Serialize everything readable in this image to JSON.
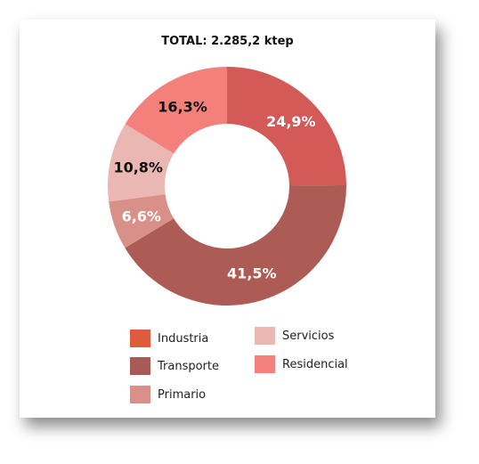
{
  "chart_data": {
    "type": "pie",
    "variant": "donut",
    "title": "TOTAL: 2.285,2 ktep",
    "slices": [
      {
        "label": "Industria",
        "value": 24.9,
        "display": "24,9%",
        "color": "#d45a58",
        "legend_color": "#e05a3f",
        "label_color": "#ffffff"
      },
      {
        "label": "Transporte",
        "value": 41.5,
        "display": "41,5%",
        "color": "#ad5b55",
        "legend_color": "#a85a56",
        "label_color": "#ffffff"
      },
      {
        "label": "Primario",
        "value": 6.6,
        "display": "6,6%",
        "color": "#d99089",
        "legend_color": "#d99089",
        "label_color": "#ffffff"
      },
      {
        "label": "Servicios",
        "value": 10.8,
        "display": "10,8%",
        "color": "#eab7b2",
        "legend_color": "#eab7b2",
        "label_color": "#111111"
      },
      {
        "label": "Residencial",
        "value": 16.3,
        "display": "16,3%",
        "color": "#f3807b",
        "legend_color": "#f3807b",
        "label_color": "#111111"
      }
    ],
    "legend_placement": "bottom"
  }
}
